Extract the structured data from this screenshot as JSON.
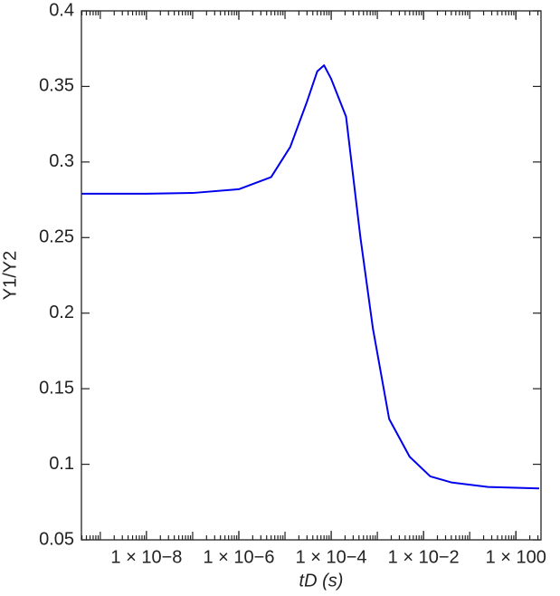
{
  "chart_data": {
    "type": "line",
    "xlabel": "tD (s)",
    "ylabel": "Y1/Y2",
    "x": [
      4e-10,
      1e-08,
      1e-07,
      1e-06,
      5e-06,
      1.3e-05,
      3e-05,
      5e-05,
      7e-05,
      0.0001,
      0.00021,
      0.00043,
      0.0008,
      0.0018,
      0.005,
      0.014,
      0.04,
      0.25,
      3.2
    ],
    "series": [
      {
        "color": "#0000ee",
        "values": [
          0.279,
          0.279,
          0.2795,
          0.282,
          0.29,
          0.31,
          0.34,
          0.36,
          0.364,
          0.355,
          0.33,
          0.25,
          0.19,
          0.13,
          0.105,
          0.092,
          0.088,
          0.085,
          0.084
        ]
      }
    ],
    "xscale": "log",
    "xlim": [
      3.9e-10,
      3.5
    ],
    "ylim": [
      0.05,
      0.4
    ],
    "xticks": [
      {
        "value": 1e-08,
        "label": "1 × 10−8"
      },
      {
        "value": 1e-06,
        "label": "1 × 10−6"
      },
      {
        "value": 0.0001,
        "label": "1 × 10−4"
      },
      {
        "value": 0.01,
        "label": "1 × 10−2"
      },
      {
        "value": 1,
        "label": "1 × 100"
      }
    ],
    "yticks": [
      0.05,
      0.1,
      0.15,
      0.2,
      0.25,
      0.3,
      0.35,
      0.4
    ]
  }
}
